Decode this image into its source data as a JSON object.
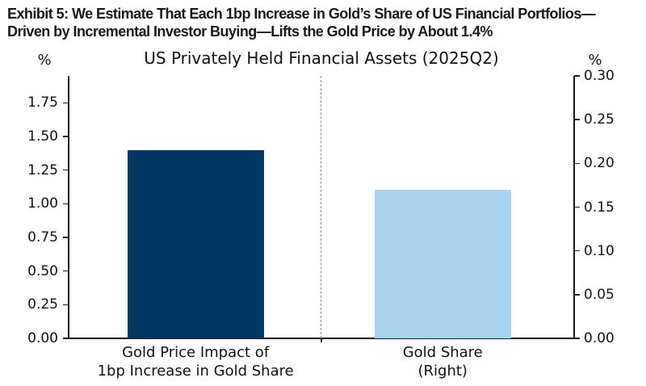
{
  "exhibit": {
    "title_lines": [
      "Exhibit 5: We Estimate That Each 1bp Increase in Gold’s Share of US Financial Portfolios—",
      "Driven by Incremental Investor Buying—Lifts the Gold Price by About 1.4%"
    ]
  },
  "chart_data": {
    "type": "bar",
    "title": "US Privately Held Financial Assets (2025Q2)",
    "categories": [
      "Gold Price Impact of\n1bp Increase in Gold Share",
      "Gold Share\n(Right)"
    ],
    "series": [
      {
        "name": "Gold Price Impact of 1bp Increase in Gold Share",
        "axis": "left",
        "value": 1.4,
        "color": "#003763"
      },
      {
        "name": "Gold Share (Right)",
        "axis": "right",
        "value": 0.17,
        "color": "#aad3ed"
      }
    ],
    "left_axis": {
      "label": "%",
      "range": [
        0,
        1.95
      ],
      "tick_step": 0.25,
      "ticks": [
        0,
        0.25,
        0.5,
        0.75,
        1.0,
        1.25,
        1.5,
        1.75
      ]
    },
    "right_axis": {
      "label": "%",
      "range": [
        0,
        0.3
      ],
      "tick_step": 0.05,
      "ticks": [
        0,
        0.05,
        0.1,
        0.15,
        0.2,
        0.25,
        0.3
      ]
    },
    "grid": false,
    "legend": "none",
    "separator_line": "dashed-vertical-center"
  }
}
